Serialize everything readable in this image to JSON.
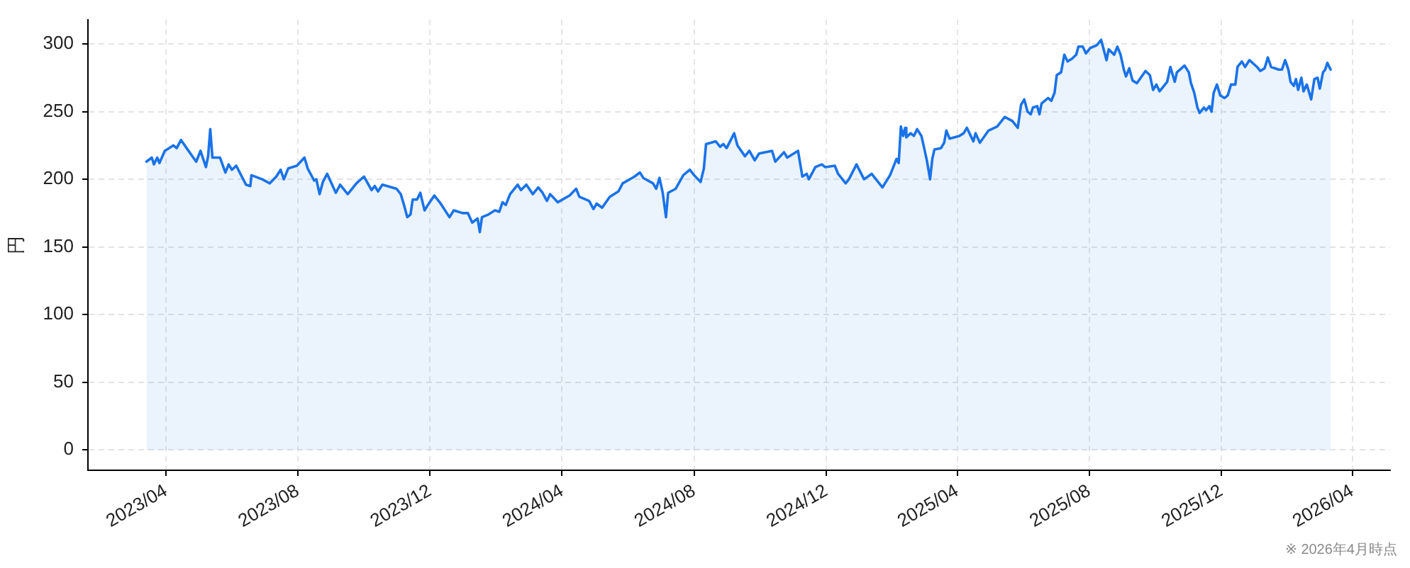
{
  "chart_data": {
    "type": "area",
    "ylabel": "円",
    "color": "#1a73e8",
    "grid": true,
    "annotations": [
      "※ 2026年4月時点"
    ],
    "xlim": [
      "2023-01-19",
      "2026-05-06"
    ],
    "ylim": [
      -15,
      318
    ],
    "xticks": [
      {
        "value": "2023-04",
        "label": "2023/04"
      },
      {
        "value": "2023-08",
        "label": "2023/08"
      },
      {
        "value": "2023-12",
        "label": "2023/12"
      },
      {
        "value": "2024-04",
        "label": "2024/04"
      },
      {
        "value": "2024-08",
        "label": "2024/08"
      },
      {
        "value": "2024-12",
        "label": "2024/12"
      },
      {
        "value": "2025-04",
        "label": "2025/04"
      },
      {
        "value": "2025-08",
        "label": "2025/08"
      },
      {
        "value": "2025-12",
        "label": "2025/12"
      },
      {
        "value": "2026-04",
        "label": "2026/04"
      }
    ],
    "yticks": [
      0,
      50,
      100,
      150,
      200,
      250,
      300
    ],
    "x": [
      "2023-03-14",
      "2023-03-19",
      "2023-03-21",
      "2023-03-24",
      "2023-03-26",
      "2023-03-31",
      "2023-04-08",
      "2023-04-11",
      "2023-04-15",
      "2023-04-21",
      "2023-04-29",
      "2023-05-03",
      "2023-05-08",
      "2023-05-10",
      "2023-05-12",
      "2023-05-14",
      "2023-05-21",
      "2023-05-26",
      "2023-05-29",
      "2023-06-01",
      "2023-06-05",
      "2023-06-14",
      "2023-06-18",
      "2023-06-19",
      "2023-06-29",
      "2023-07-06",
      "2023-07-12",
      "2023-07-16",
      "2023-07-19",
      "2023-07-23",
      "2023-07-31",
      "2023-08-07",
      "2023-08-10",
      "2023-08-16",
      "2023-08-18",
      "2023-08-21",
      "2023-08-24",
      "2023-08-28",
      "2023-09-05",
      "2023-09-09",
      "2023-09-16",
      "2023-09-24",
      "2023-10-01",
      "2023-10-08",
      "2023-10-11",
      "2023-10-14",
      "2023-10-18",
      "2023-10-31",
      "2023-11-04",
      "2023-11-07",
      "2023-11-10",
      "2023-11-13",
      "2023-11-15",
      "2023-11-19",
      "2023-11-22",
      "2023-11-26",
      "2023-11-29",
      "2023-12-05",
      "2023-12-10",
      "2023-12-19",
      "2023-12-23",
      "2023-12-31",
      "2024-01-05",
      "2024-01-09",
      "2024-01-14",
      "2024-01-16",
      "2024-01-18",
      "2024-01-24",
      "2024-01-30",
      "2024-02-03",
      "2024-02-06",
      "2024-02-09",
      "2024-02-13",
      "2024-02-20",
      "2024-02-23",
      "2024-02-28",
      "2024-03-05",
      "2024-03-10",
      "2024-03-14",
      "2024-03-18",
      "2024-03-21",
      "2024-03-28",
      "2024-04-08",
      "2024-04-14",
      "2024-04-17",
      "2024-04-26",
      "2024-04-30",
      "2024-05-03",
      "2024-05-08",
      "2024-05-15",
      "2024-05-23",
      "2024-05-27",
      "2024-06-07",
      "2024-06-12",
      "2024-06-15",
      "2024-06-24",
      "2024-06-27",
      "2024-06-30",
      "2024-07-03",
      "2024-07-06",
      "2024-07-08",
      "2024-07-15",
      "2024-07-22",
      "2024-07-28",
      "2024-08-01",
      "2024-08-07",
      "2024-08-10",
      "2024-08-12",
      "2024-08-21",
      "2024-08-25",
      "2024-08-28",
      "2024-08-31",
      "2024-09-07",
      "2024-09-10",
      "2024-09-17",
      "2024-09-21",
      "2024-09-26",
      "2024-09-30",
      "2024-10-12",
      "2024-10-15",
      "2024-10-23",
      "2024-10-26",
      "2024-11-05",
      "2024-11-09",
      "2024-11-13",
      "2024-11-15",
      "2024-11-21",
      "2024-11-27",
      "2024-11-30",
      "2024-12-09",
      "2024-12-12",
      "2024-12-19",
      "2024-12-22",
      "2024-12-29",
      "2025-01-05",
      "2025-01-12",
      "2025-01-19",
      "2025-01-22",
      "2025-01-29",
      "2025-02-04",
      "2025-02-06",
      "2025-02-08",
      "2025-02-10",
      "2025-02-12",
      "2025-02-13",
      "2025-02-17",
      "2025-02-20",
      "2025-02-23",
      "2025-02-27",
      "2025-03-01",
      "2025-03-04",
      "2025-03-07",
      "2025-03-09",
      "2025-03-11",
      "2025-03-17",
      "2025-03-20",
      "2025-03-22",
      "2025-03-25",
      "2025-04-03",
      "2025-04-07",
      "2025-04-10",
      "2025-04-16",
      "2025-04-18",
      "2025-04-22",
      "2025-04-30",
      "2025-05-08",
      "2025-05-15",
      "2025-05-22",
      "2025-05-27",
      "2025-05-30",
      "2025-06-02",
      "2025-06-05",
      "2025-06-08",
      "2025-06-10",
      "2025-06-14",
      "2025-06-16",
      "2025-06-18",
      "2025-06-24",
      "2025-06-27",
      "2025-06-30",
      "2025-07-02",
      "2025-07-06",
      "2025-07-09",
      "2025-07-12",
      "2025-07-16",
      "2025-07-20",
      "2025-07-22",
      "2025-07-26",
      "2025-07-29",
      "2025-08-02",
      "2025-08-08",
      "2025-08-12",
      "2025-08-14",
      "2025-08-17",
      "2025-08-19",
      "2025-08-24",
      "2025-08-27",
      "2025-08-30",
      "2025-09-02",
      "2025-09-04",
      "2025-09-07",
      "2025-09-10",
      "2025-09-14",
      "2025-09-22",
      "2025-09-26",
      "2025-09-29",
      "2025-10-02",
      "2025-10-05",
      "2025-10-12",
      "2025-10-15",
      "2025-10-19",
      "2025-10-21",
      "2025-10-28",
      "2025-11-01",
      "2025-11-03",
      "2025-11-06",
      "2025-11-09",
      "2025-11-11",
      "2025-11-15",
      "2025-11-17",
      "2025-11-20",
      "2025-11-22",
      "2025-11-24",
      "2025-11-27",
      "2025-11-30",
      "2025-12-04",
      "2025-12-07",
      "2025-12-10",
      "2025-12-14",
      "2025-12-16",
      "2025-12-20",
      "2025-12-23",
      "2025-12-27",
      "2026-01-03",
      "2026-01-06",
      "2026-01-10",
      "2026-01-13",
      "2026-01-16",
      "2026-01-23",
      "2026-01-26",
      "2026-01-29",
      "2026-02-01",
      "2026-02-03",
      "2026-02-06",
      "2026-02-08",
      "2026-02-10",
      "2026-02-13",
      "2026-02-15",
      "2026-02-18",
      "2026-02-22",
      "2026-02-25",
      "2026-02-28",
      "2026-03-02",
      "2026-03-05",
      "2026-03-07",
      "2026-03-09",
      "2026-03-12"
    ],
    "values": [
      213,
      216,
      211,
      216,
      212,
      221,
      225,
      223,
      229,
      222,
      213,
      221,
      209,
      217,
      237,
      216,
      216,
      205,
      211,
      207,
      210,
      196,
      195,
      203,
      200,
      197,
      202,
      207,
      200,
      208,
      210,
      216,
      208,
      199,
      200,
      189,
      198,
      204,
      190,
      196,
      189,
      197,
      202,
      192,
      195,
      191,
      196,
      193,
      189,
      181,
      172,
      174,
      185,
      185,
      190,
      177,
      181,
      188,
      183,
      172,
      177,
      175,
      175,
      168,
      171,
      161,
      172,
      174,
      177,
      176,
      183,
      181,
      189,
      196,
      192,
      196,
      189,
      194,
      190,
      184,
      189,
      183,
      188,
      193,
      187,
      184,
      178,
      182,
      179,
      187,
      191,
      197,
      202,
      205,
      201,
      197,
      193,
      201,
      190,
      172,
      190,
      193,
      203,
      207,
      203,
      198,
      208,
      226,
      228,
      224,
      226,
      223,
      234,
      225,
      217,
      221,
      214,
      219,
      221,
      213,
      220,
      216,
      221,
      202,
      204,
      200,
      209,
      211,
      209,
      210,
      204,
      197,
      200,
      211,
      200,
      204,
      197,
      194,
      203,
      215,
      212,
      239,
      232,
      238,
      231,
      234,
      232,
      237,
      232,
      225,
      214,
      200,
      215,
      222,
      223,
      227,
      236,
      230,
      232,
      234,
      238,
      228,
      234,
      227,
      236,
      239,
      246,
      243,
      238,
      255,
      259,
      250,
      248,
      253,
      254,
      248,
      256,
      260,
      258,
      264,
      277,
      279,
      292,
      287,
      289,
      292,
      298,
      298,
      293,
      297,
      299,
      303,
      297,
      288,
      296,
      292,
      298,
      292,
      281,
      276,
      282,
      273,
      271,
      280,
      277,
      266,
      270,
      265,
      272,
      283,
      272,
      279,
      284,
      279,
      271,
      264,
      253,
      249,
      253,
      251,
      254,
      250,
      264,
      270,
      262,
      260,
      262,
      270,
      270,
      283,
      287,
      283,
      288,
      283,
      280,
      282,
      290,
      283,
      281,
      281,
      288,
      281,
      272,
      269,
      274,
      266,
      275,
      265,
      270,
      259,
      274,
      275,
      267,
      279,
      281,
      286,
      281
    ]
  }
}
